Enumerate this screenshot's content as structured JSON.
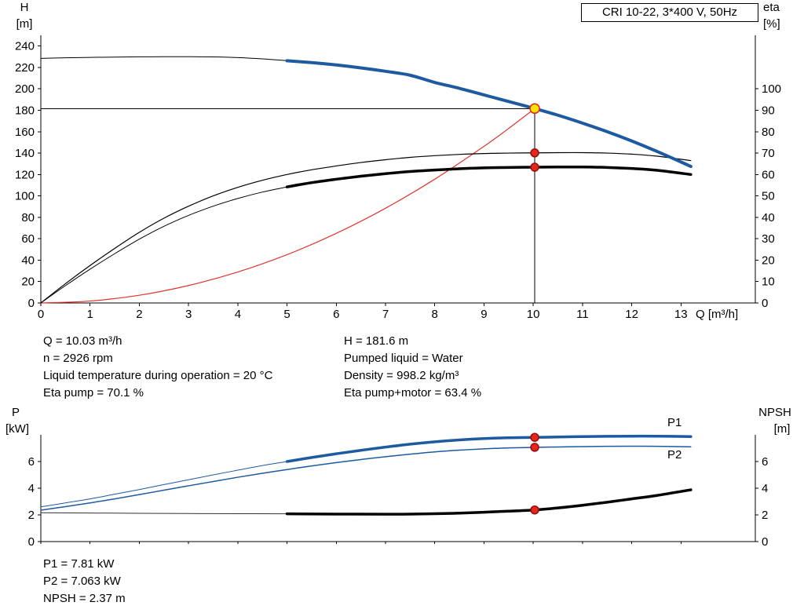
{
  "title_box": "CRI 10-22, 3*400 V, 50Hz",
  "info_top": {
    "left": [
      "Q = 10.03 m³/h",
      "n = 2926 rpm",
      "Liquid temperature during operation = 20 °C",
      "Eta pump = 70.1 %"
    ],
    "right": [
      "H = 181.6 m",
      "Pumped liquid = Water",
      "Density = 998.2 kg/m³",
      "Eta pump+motor = 63.4 %"
    ]
  },
  "info_bottom": [
    "P1 = 7.81 kW",
    "P2 = 7.063 kW",
    "NPSH = 2.37 m"
  ],
  "colors": {
    "curve_blue": "#1d5aa0",
    "curve_red": "#e2352b",
    "curve_black": "#000000",
    "dot_red_fill": "#e8251d",
    "dot_red_stroke": "#8f0f0f",
    "duty_fill": "#ffe300",
    "duty_stroke": "#e8251d"
  },
  "chart_data": [
    {
      "type": "line",
      "title": "CRI 10-22, 3*400 V, 50Hz",
      "xlabel": "Q [m³/h]",
      "ylabel_left": [
        "H",
        "[m]"
      ],
      "ylabel_right": [
        "eta",
        "[%]"
      ],
      "xlim": [
        0,
        14.51
      ],
      "ylim_left": [
        0,
        250
      ],
      "ylim_right": [
        0,
        125
      ],
      "x_ticks": [
        0,
        1,
        2,
        3,
        4,
        5,
        6,
        7,
        8,
        9,
        10,
        11,
        12,
        13
      ],
      "y_ticks_left": [
        0,
        20,
        40,
        60,
        80,
        100,
        120,
        140,
        160,
        180,
        200,
        220,
        240
      ],
      "y_ticks_right": [
        0,
        10,
        20,
        30,
        40,
        50,
        60,
        70,
        80,
        90,
        100
      ],
      "grid": false,
      "series": [
        {
          "name": "system-curve",
          "axis": "left",
          "color": "#e2352b",
          "width": 1.2,
          "points": [
            [
              0,
              0
            ],
            [
              1,
              1.8
            ],
            [
              2,
              7.2
            ],
            [
              3,
              16.3
            ],
            [
              4,
              28.9
            ],
            [
              5,
              45.1
            ],
            [
              6,
              65.0
            ],
            [
              7,
              88.5
            ],
            [
              8,
              115.6
            ],
            [
              9,
              146.3
            ],
            [
              9.5,
              163.0
            ],
            [
              10.03,
              181.6
            ]
          ]
        },
        {
          "name": "eta-pump-curve",
          "axis": "right",
          "color": "#000000",
          "width": 1.2,
          "points": [
            [
              0,
              0
            ],
            [
              0.5,
              9
            ],
            [
              1,
              17.5
            ],
            [
              1.5,
              25.5
            ],
            [
              2,
              33
            ],
            [
              2.5,
              39.6
            ],
            [
              3,
              45.2
            ],
            [
              3.5,
              50
            ],
            [
              4,
              54
            ],
            [
              4.5,
              57.3
            ],
            [
              5,
              60
            ],
            [
              5.5,
              62.2
            ],
            [
              6,
              64
            ],
            [
              6.5,
              65.6
            ],
            [
              7,
              66.9
            ],
            [
              7.5,
              68
            ],
            [
              8,
              68.8
            ],
            [
              8.5,
              69.4
            ],
            [
              9,
              69.8
            ],
            [
              9.5,
              70
            ],
            [
              10.03,
              70.1
            ],
            [
              10.5,
              70.2
            ],
            [
              11,
              70.2
            ],
            [
              11.5,
              70
            ],
            [
              12,
              69.5
            ],
            [
              12.5,
              68.6
            ],
            [
              13.2,
              66.5
            ]
          ]
        },
        {
          "name": "eta-pump-motor-curve-low-flow",
          "axis": "right",
          "color": "#000000",
          "width": 1,
          "points": [
            [
              0,
              0
            ],
            [
              0.5,
              8.1
            ],
            [
              1,
              15.8
            ],
            [
              1.5,
              23
            ],
            [
              2,
              29.8
            ],
            [
              2.5,
              35.8
            ],
            [
              3,
              40.9
            ],
            [
              3.5,
              45.2
            ],
            [
              4,
              48.8
            ],
            [
              4.5,
              51.8
            ],
            [
              5,
              54.2
            ]
          ]
        },
        {
          "name": "eta-pump-motor-curve",
          "axis": "right",
          "color": "#000000",
          "width": 3.5,
          "points": [
            [
              5,
              54.2
            ],
            [
              5.5,
              56.2
            ],
            [
              6,
              57.8
            ],
            [
              6.5,
              59.2
            ],
            [
              7,
              60.4
            ],
            [
              7.5,
              61.4
            ],
            [
              8,
              62.1
            ],
            [
              8.5,
              62.7
            ],
            [
              9,
              63.1
            ],
            [
              9.5,
              63.3
            ],
            [
              10.03,
              63.4
            ],
            [
              10.5,
              63.5
            ],
            [
              11,
              63.5
            ],
            [
              11.5,
              63.3
            ],
            [
              12,
              62.8
            ],
            [
              12.5,
              62
            ],
            [
              13.2,
              60
            ]
          ]
        },
        {
          "name": "pump-curve-low-flow",
          "axis": "left",
          "color": "#000000",
          "width": 1,
          "points": [
            [
              0,
              228.5
            ],
            [
              0.5,
              229
            ],
            [
              1,
              229.4
            ],
            [
              1.5,
              229.7
            ],
            [
              2,
              229.9
            ],
            [
              2.5,
              230
            ],
            [
              3,
              230
            ],
            [
              3.5,
              229.8
            ],
            [
              4,
              229.2
            ],
            [
              4.5,
              228
            ],
            [
              5,
              226.3
            ]
          ]
        },
        {
          "name": "pump-curve",
          "axis": "left",
          "color": "#1d5aa0",
          "width": 4,
          "points": [
            [
              5,
              226.3
            ],
            [
              5.5,
              224.5
            ],
            [
              6,
              222.3
            ],
            [
              6.5,
              219.6
            ],
            [
              7,
              216.4
            ],
            [
              7.5,
              212.7
            ],
            [
              8,
              206.0
            ],
            [
              8.5,
              200.5
            ],
            [
              9,
              194.3
            ],
            [
              9.5,
              188.2
            ],
            [
              10.03,
              181.6
            ],
            [
              10.5,
              175.4
            ],
            [
              11,
              168
            ],
            [
              11.5,
              160
            ],
            [
              12,
              151.3
            ],
            [
              12.5,
              141.8
            ],
            [
              13,
              131.7
            ],
            [
              13.2,
              127.5
            ]
          ]
        }
      ],
      "crosshair": {
        "q": 10.03,
        "h": 181.6
      },
      "markers": [
        {
          "name": "duty-point",
          "axis": "left",
          "q": 10.03,
          "value": 181.6,
          "r": 6,
          "fill": "#ffe300",
          "stroke": "#e8251d"
        },
        {
          "name": "eta-pump-point",
          "axis": "right",
          "q": 10.03,
          "value": 70.1,
          "r": 5,
          "fill": "#e8251d",
          "stroke": "#8f0f0f"
        },
        {
          "name": "eta-pump-motor-point",
          "axis": "right",
          "q": 10.03,
          "value": 63.4,
          "r": 5,
          "fill": "#e8251d",
          "stroke": "#8f0f0f"
        }
      ]
    },
    {
      "type": "line",
      "title": "",
      "xlabel": "",
      "ylabel_left": [
        "P",
        "[kW]"
      ],
      "ylabel_right": [
        "NPSH",
        "[m]"
      ],
      "xlim": [
        0,
        14.51
      ],
      "ylim": [
        0,
        8
      ],
      "x_ticks": [
        0,
        1,
        2,
        3,
        4,
        5,
        6,
        7,
        8,
        9,
        10,
        11,
        12,
        13
      ],
      "y_ticks": [
        0,
        2,
        4,
        6
      ],
      "grid": false,
      "series": [
        {
          "name": "p1-curve-low-flow",
          "color": "#1d5aa0",
          "width": 1,
          "points": [
            [
              0,
              2.6
            ],
            [
              0.5,
              2.9
            ],
            [
              1,
              3.2
            ],
            [
              1.5,
              3.55
            ],
            [
              2,
              3.9
            ],
            [
              2.5,
              4.27
            ],
            [
              3,
              4.63
            ],
            [
              3.5,
              5.0
            ],
            [
              4,
              5.35
            ],
            [
              4.5,
              5.7
            ],
            [
              5,
              6.0
            ]
          ]
        },
        {
          "name": "p1-curve",
          "color": "#1d5aa0",
          "width": 3.5,
          "points": [
            [
              5,
              6.0
            ],
            [
              5.5,
              6.3
            ],
            [
              6,
              6.58
            ],
            [
              6.5,
              6.84
            ],
            [
              7,
              7.08
            ],
            [
              7.5,
              7.3
            ],
            [
              8,
              7.48
            ],
            [
              8.5,
              7.62
            ],
            [
              9,
              7.72
            ],
            [
              9.5,
              7.78
            ],
            [
              10.03,
              7.81
            ],
            [
              10.5,
              7.84
            ],
            [
              11,
              7.87
            ],
            [
              11.5,
              7.89
            ],
            [
              12,
              7.9
            ],
            [
              12.5,
              7.9
            ],
            [
              13.2,
              7.87
            ]
          ]
        },
        {
          "name": "p2-curve",
          "color": "#1d5aa0",
          "width": 1.5,
          "points": [
            [
              0,
              2.35
            ],
            [
              0.5,
              2.62
            ],
            [
              1,
              2.9
            ],
            [
              1.5,
              3.2
            ],
            [
              2,
              3.52
            ],
            [
              2.5,
              3.85
            ],
            [
              3,
              4.18
            ],
            [
              3.5,
              4.5
            ],
            [
              4,
              4.82
            ],
            [
              4.5,
              5.12
            ],
            [
              5,
              5.4
            ],
            [
              5.5,
              5.67
            ],
            [
              6,
              5.92
            ],
            [
              6.5,
              6.15
            ],
            [
              7,
              6.36
            ],
            [
              7.5,
              6.55
            ],
            [
              8,
              6.72
            ],
            [
              8.5,
              6.85
            ],
            [
              9,
              6.95
            ],
            [
              9.5,
              7.02
            ],
            [
              10.03,
              7.06
            ],
            [
              10.5,
              7.09
            ],
            [
              11,
              7.12
            ],
            [
              11.5,
              7.14
            ],
            [
              12,
              7.15
            ],
            [
              12.5,
              7.14
            ],
            [
              13.2,
              7.1
            ]
          ]
        },
        {
          "name": "npsh-curve-low-flow",
          "color": "#333333",
          "width": 1,
          "points": [
            [
              0,
              2.16
            ],
            [
              1,
              2.14
            ],
            [
              2,
              2.12
            ],
            [
              3,
              2.1
            ],
            [
              4,
              2.09
            ],
            [
              5,
              2.08
            ]
          ]
        },
        {
          "name": "npsh-curve",
          "color": "#000000",
          "width": 3.5,
          "points": [
            [
              5,
              2.08
            ],
            [
              6,
              2.06
            ],
            [
              7,
              2.05
            ],
            [
              7.5,
              2.06
            ],
            [
              8,
              2.09
            ],
            [
              8.5,
              2.13
            ],
            [
              9,
              2.2
            ],
            [
              9.5,
              2.28
            ],
            [
              10.03,
              2.37
            ],
            [
              10.5,
              2.52
            ],
            [
              11,
              2.72
            ],
            [
              11.5,
              2.95
            ],
            [
              12,
              3.2
            ],
            [
              12.5,
              3.45
            ],
            [
              13.2,
              3.88
            ]
          ]
        }
      ],
      "curve_labels": [
        {
          "name": "p1-label",
          "text": "P1",
          "color": "#1d5aa0"
        },
        {
          "name": "p2-label",
          "text": "P2",
          "color": "#1d5aa0"
        }
      ],
      "markers": [
        {
          "name": "p1-point",
          "q": 10.03,
          "value": 7.81,
          "r": 5,
          "fill": "#e8251d",
          "stroke": "#8f0f0f"
        },
        {
          "name": "p2-point",
          "q": 10.03,
          "value": 7.063,
          "r": 5,
          "fill": "#e8251d",
          "stroke": "#8f0f0f"
        },
        {
          "name": "npsh-point",
          "q": 10.03,
          "value": 2.37,
          "r": 5,
          "fill": "#e8251d",
          "stroke": "#8f0f0f"
        }
      ]
    }
  ]
}
